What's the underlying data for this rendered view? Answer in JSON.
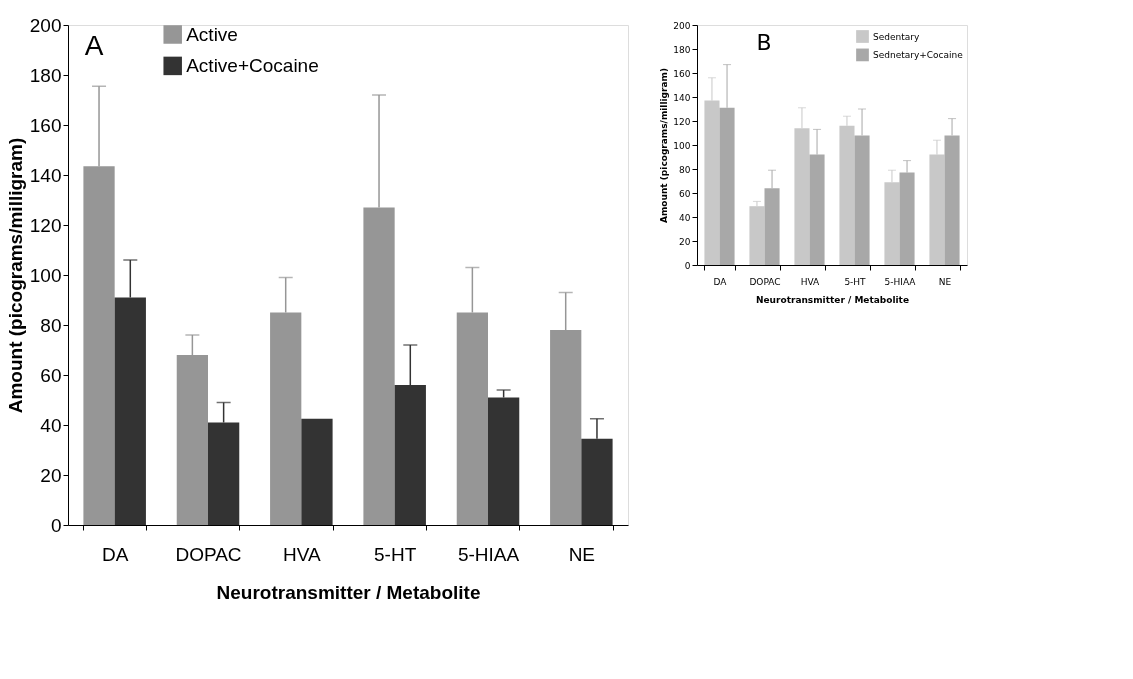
{
  "chart_data": [
    {
      "type": "bar",
      "categories": [
        "DA",
        "DOPAC",
        "HVA",
        "5-HT",
        "5-HIAA",
        "NE"
      ],
      "xlabel": "Neurotransmitter / Metabolite",
      "ylabel": "Amount (picograms/milligram)",
      "ylim": [
        0,
        200
      ],
      "yticks": [
        0,
        20,
        40,
        60,
        80,
        100,
        120,
        140,
        160,
        180,
        200
      ],
      "legend": "top left",
      "grid": false,
      "annotations": [
        "A"
      ],
      "series": [
        {
          "name": "Active",
          "color": "#969696",
          "values": [
            143.5,
            68,
            85,
            127,
            85,
            78
          ],
          "errors": [
            32,
            8,
            14,
            45,
            18,
            15
          ]
        },
        {
          "name": "Active+Cocaine",
          "color": "#333333",
          "values": [
            91,
            41,
            42.5,
            56,
            51,
            34.5
          ],
          "errors": [
            15,
            8,
            null,
            16,
            3,
            8
          ]
        }
      ]
    },
    {
      "type": "bar",
      "categories": [
        "DA",
        "DOPAC",
        "HVA",
        "5-HT",
        "5-HIAA",
        "NE"
      ],
      "xlabel": "Neurotransmitter / Metabolite",
      "ylabel": "Amount (picograms/milligram)",
      "ylim": [
        0,
        200
      ],
      "yticks": [
        0,
        20,
        40,
        60,
        80,
        100,
        120,
        140,
        160,
        180,
        200
      ],
      "legend": "top right",
      "grid": false,
      "annotations": [
        "B"
      ],
      "series": [
        {
          "name": "Sedentary",
          "color": "#c8c8c8",
          "values": [
            137,
            49,
            114,
            116,
            69,
            92
          ],
          "errors": [
            19,
            4,
            17,
            8,
            10,
            12
          ]
        },
        {
          "name": "Sednetary+Cocaine",
          "color": "#a8a8a8",
          "values": [
            131,
            64,
            92,
            108,
            77,
            108
          ],
          "errors": [
            36,
            15,
            21,
            22,
            10,
            14
          ]
        }
      ]
    }
  ]
}
